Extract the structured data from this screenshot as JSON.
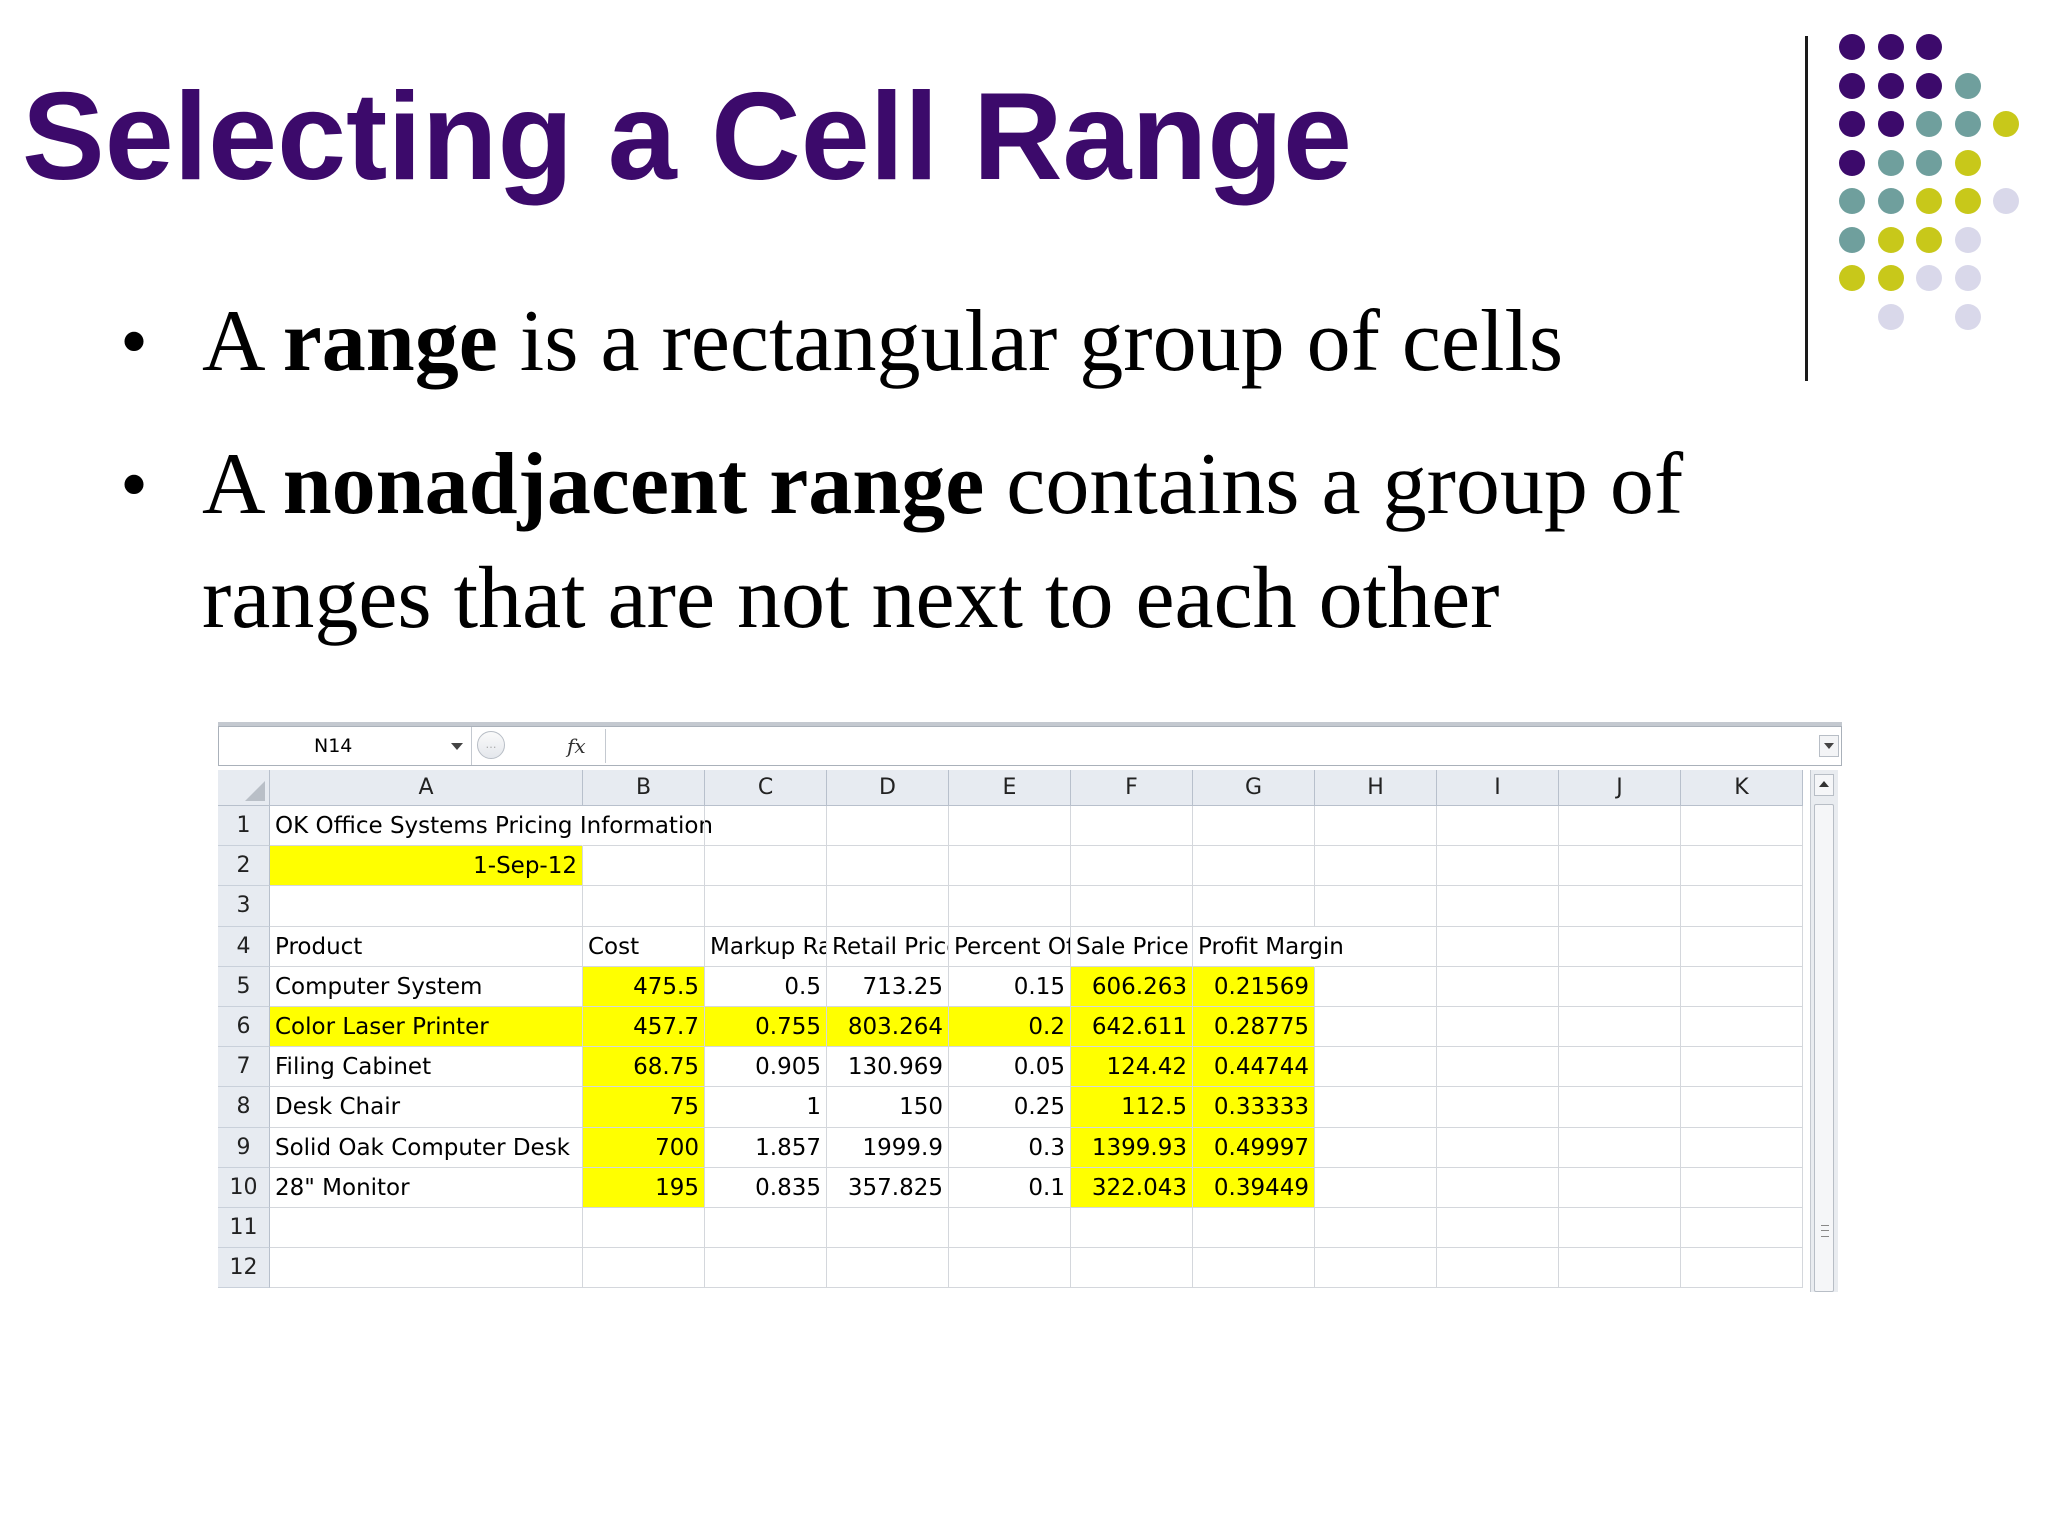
{
  "slide": {
    "title": "Selecting a Cell Range",
    "accent_color": "#3c0a6b",
    "bullets": [
      {
        "pre": "A ",
        "bold": "range",
        "post": " is a rectangular group of cells"
      },
      {
        "pre": "A ",
        "bold": "nonadjacent range",
        "post": " contains a group of",
        "line2": "ranges that are not next to each other"
      }
    ],
    "dot_colors": {
      "purple": "#3c0a6b",
      "teal": "#6f9f9d",
      "olive": "#c8c81a",
      "lavender": "#d9d8ea"
    }
  },
  "spreadsheet": {
    "name_box": "N14",
    "fx_label": "fx",
    "columns": [
      "A",
      "B",
      "C",
      "D",
      "E",
      "F",
      "G",
      "H",
      "I",
      "J",
      "K"
    ],
    "rows": [
      "1",
      "2",
      "3",
      "4",
      "5",
      "6",
      "7",
      "8",
      "9",
      "10",
      "11",
      "12"
    ],
    "highlight_color": "#ffff00",
    "cells": {
      "r1": {
        "A": "OK Office Systems Pricing Information"
      },
      "r2": {
        "A": "1-Sep-12"
      },
      "r4": {
        "A": "Product",
        "B": "Cost",
        "C": "Markup Rate",
        "D": "Retail Price",
        "E": "Percent Off",
        "F": "Sale Price",
        "G": "Profit Margin"
      },
      "r5": {
        "A": "Computer System",
        "B": "475.5",
        "C": "0.5",
        "D": "713.25",
        "E": "0.15",
        "F": "606.263",
        "G": "0.21569"
      },
      "r6": {
        "A": "Color Laser Printer",
        "B": "457.7",
        "C": "0.755",
        "D": "803.264",
        "E": "0.2",
        "F": "642.611",
        "G": "0.28775"
      },
      "r7": {
        "A": "Filing Cabinet",
        "B": "68.75",
        "C": "0.905",
        "D": "130.969",
        "E": "0.05",
        "F": "124.42",
        "G": "0.44744"
      },
      "r8": {
        "A": "Desk Chair",
        "B": "75",
        "C": "1",
        "D": "150",
        "E": "0.25",
        "F": "112.5",
        "G": "0.33333"
      },
      "r9": {
        "A": "Solid Oak Computer Desk",
        "B": "700",
        "C": "1.857",
        "D": "1999.9",
        "E": "0.3",
        "F": "1399.93",
        "G": "0.49997"
      },
      "r10": {
        "A": "28\" Monitor",
        "B": "195",
        "C": "0.835",
        "D": "357.825",
        "E": "0.1",
        "F": "322.043",
        "G": "0.39449"
      }
    }
  }
}
